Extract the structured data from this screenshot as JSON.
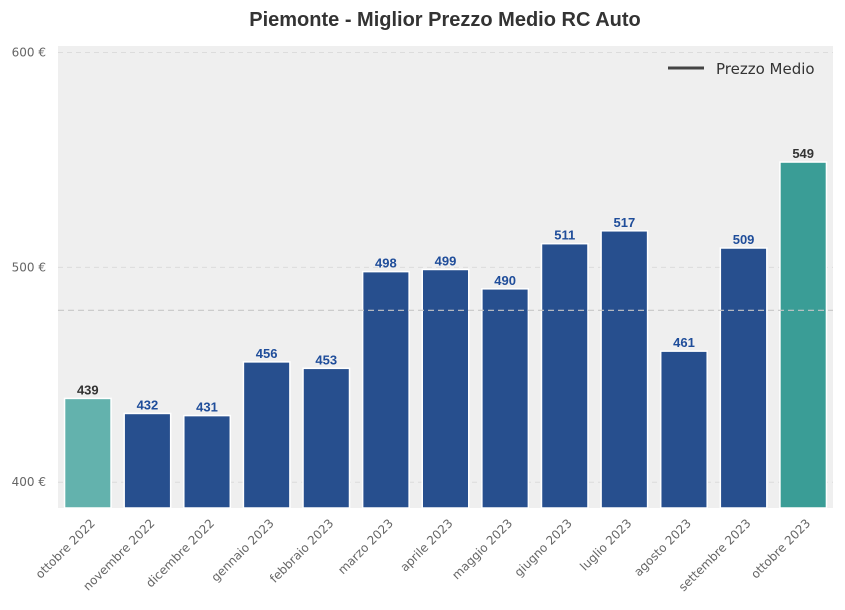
{
  "chart_data": {
    "type": "bar",
    "title": "Piemonte - Miglior Prezzo Medio RC Auto",
    "xlabel": "",
    "ylabel": "",
    "categories": [
      "ottobre 2022",
      "novembre 2022",
      "dicembre 2022",
      "gennaio 2023",
      "febbraio 2023",
      "marzo 2023",
      "aprile 2023",
      "maggio 2023",
      "giugno 2023",
      "luglio 2023",
      "agosto 2023",
      "settembre 2023",
      "ottobre 2023"
    ],
    "values": [
      439,
      432,
      431,
      456,
      453,
      498,
      499,
      490,
      511,
      517,
      461,
      509,
      549
    ],
    "value_labels": [
      "439",
      "432",
      "431",
      "456",
      "453",
      "498",
      "499",
      "490",
      "511",
      "517",
      "461",
      "509",
      "549"
    ],
    "ylim": [
      388,
      603
    ],
    "yticks": [
      400,
      500,
      600
    ],
    "ytick_labels": [
      "400 €",
      "500 €",
      "600 €"
    ],
    "reference_line": {
      "name": "Prezzo Medio",
      "value": 480
    },
    "legend": {
      "entries": [
        "Prezzo Medio"
      ],
      "placement": "top-right"
    },
    "grid": true,
    "colors": {
      "background": "#efefef",
      "first_bar": "#63b2ad",
      "middle_bars": "#274f8e",
      "last_bar": "#3a9d96",
      "first_label": "#333333",
      "middle_label": "#1f4d9a",
      "last_label": "#333333",
      "reference_line": "#c8c8c8",
      "legend_line": "#444444"
    }
  }
}
